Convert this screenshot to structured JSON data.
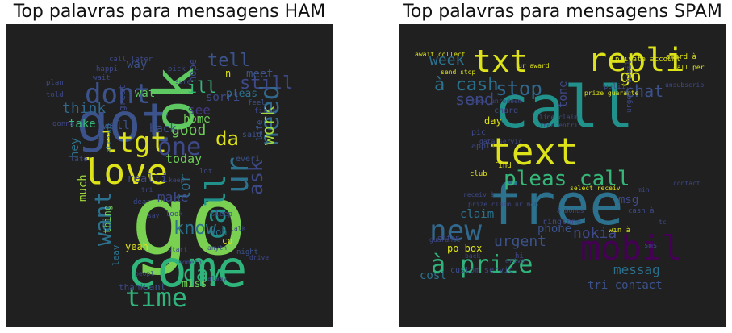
{
  "panels": [
    {
      "title": "Top palavras para mensagens HAM",
      "words": [
        {
          "text": "go",
          "color": "#7ad151"
        },
        {
          "text": "come",
          "color": "#2fb47c"
        },
        {
          "text": "got",
          "color": "#3b528b"
        },
        {
          "text": "love",
          "color": "#dde318"
        },
        {
          "text": "ok",
          "color": "#5ec962"
        },
        {
          "text": "ltgt",
          "color": "#dde318"
        },
        {
          "text": "time",
          "color": "#2fb47c"
        },
        {
          "text": "dont",
          "color": "#3b528b"
        },
        {
          "text": "call",
          "color": "#21918c"
        },
        {
          "text": "ur",
          "color": "#2c728e"
        },
        {
          "text": "one",
          "color": "#3e4989"
        },
        {
          "text": "know",
          "color": "#2c728e"
        },
        {
          "text": "day",
          "color": "#2fb47c"
        },
        {
          "text": "want",
          "color": "#2c728e"
        },
        {
          "text": "need",
          "color": "#31688e"
        },
        {
          "text": "ask",
          "color": "#3e4989"
        },
        {
          "text": "da",
          "color": "#dde318"
        },
        {
          "text": "good",
          "color": "#6ece58"
        },
        {
          "text": "still",
          "color": "#3e4989"
        },
        {
          "text": "tell",
          "color": "#3b528b"
        },
        {
          "text": "work",
          "color": "#a0da39"
        },
        {
          "text": "think",
          "color": "#31688e"
        },
        {
          "text": "see",
          "color": "#443983"
        },
        {
          "text": "ill",
          "color": "#35b779"
        },
        {
          "text": "home",
          "color": "#6ece58"
        },
        {
          "text": "lor",
          "color": "#2c728e"
        },
        {
          "text": "make",
          "color": "#3e4989"
        },
        {
          "text": "today",
          "color": "#6ece58"
        },
        {
          "text": "way",
          "color": "#3b528b"
        },
        {
          "text": "take",
          "color": "#35b779"
        },
        {
          "text": "back",
          "color": "#3b528b"
        },
        {
          "text": "realli",
          "color": "#3e4989"
        },
        {
          "text": "much",
          "color": "#a0da39"
        },
        {
          "text": "hey",
          "color": "#2c728e"
        },
        {
          "text": "well",
          "color": "#3b528b"
        },
        {
          "text": "sorri",
          "color": "#3e4989"
        },
        {
          "text": "meet",
          "color": "#3b528b"
        },
        {
          "text": "pleas",
          "color": "#2c728e"
        },
        {
          "text": "wat",
          "color": "#5ec962"
        },
        {
          "text": "yeah",
          "color": "#dde318"
        },
        {
          "text": "miss",
          "color": "#6ece58"
        },
        {
          "text": "cant",
          "color": "#3b528b"
        },
        {
          "text": "thank",
          "color": "#3e4989"
        },
        {
          "text": "thing",
          "color": "#6ece58"
        },
        {
          "text": "leav",
          "color": "#2c728e"
        },
        {
          "text": "oh",
          "color": "#2c728e"
        },
        {
          "text": "co",
          "color": "#dde318"
        },
        {
          "text": "n",
          "color": "#dde318"
        },
        {
          "text": "life",
          "color": "#3b528b"
        },
        {
          "text": "great",
          "color": "#3e4989"
        },
        {
          "text": "hope",
          "color": "#3e4989"
        },
        {
          "text": "said",
          "color": "#3b528b"
        },
        {
          "text": "everi",
          "color": "#3b528b"
        },
        {
          "text": "night",
          "color": "#3b528b"
        },
        {
          "text": "happi",
          "color": "#3e4989"
        },
        {
          "text": "wait",
          "color": "#3e4989"
        },
        {
          "text": "call later",
          "color": "#3e4989"
        },
        {
          "text": "pick",
          "color": "#3e4989"
        },
        {
          "text": "dear",
          "color": "#3e4989"
        },
        {
          "text": "later",
          "color": "#3e4989"
        },
        {
          "text": "feel",
          "color": "#3b528b"
        },
        {
          "text": "first",
          "color": "#3e4989"
        },
        {
          "text": "alreadi",
          "color": "#2c728e"
        },
        {
          "text": "plan",
          "color": "#3e4989"
        },
        {
          "text": "told",
          "color": "#3e4989"
        },
        {
          "text": "gonna",
          "color": "#3e4989"
        },
        {
          "text": "lot",
          "color": "#3e4989"
        },
        {
          "text": "look",
          "color": "#3e4989"
        },
        {
          "text": "sleep",
          "color": "#3e4989"
        },
        {
          "text": "talk",
          "color": "#3e4989"
        },
        {
          "text": "anyth",
          "color": "#3e4989"
        },
        {
          "text": "someth",
          "color": "#3e4989"
        },
        {
          "text": "alway",
          "color": "#3e4989"
        },
        {
          "text": "peopl",
          "color": "#3e4989"
        },
        {
          "text": "start",
          "color": "#3e4989"
        },
        {
          "text": "keep",
          "color": "#3e4989"
        },
        {
          "text": "tri",
          "color": "#3e4989"
        },
        {
          "text": "say",
          "color": "#3e4989"
        },
        {
          "text": "sure",
          "color": "#3e4989"
        },
        {
          "text": "drive",
          "color": "#3e4989"
        }
      ]
    },
    {
      "title": "Top palavras para mensagens SPAM",
      "words": [
        {
          "text": "call",
          "color": "#21918c"
        },
        {
          "text": "free",
          "color": "#2c728e"
        },
        {
          "text": "text",
          "color": "#dde318"
        },
        {
          "text": "txt",
          "color": "#dde318"
        },
        {
          "text": "repli",
          "color": "#dde318"
        },
        {
          "text": "mobil",
          "color": "#440154"
        },
        {
          "text": "new",
          "color": "#31688e"
        },
        {
          "text": "à prize",
          "color": "#2fb47c"
        },
        {
          "text": "pleas call",
          "color": "#35b779"
        },
        {
          "text": "stop",
          "color": "#31688e"
        },
        {
          "text": "à cash",
          "color": "#2c728e"
        },
        {
          "text": "send",
          "color": "#3e4989"
        },
        {
          "text": "week",
          "color": "#2c728e"
        },
        {
          "text": "nokia",
          "color": "#3e4989"
        },
        {
          "text": "messag",
          "color": "#2c728e"
        },
        {
          "text": "urgent",
          "color": "#3b528b"
        },
        {
          "text": "chat",
          "color": "#3b528b"
        },
        {
          "text": "go",
          "color": "#dde318"
        },
        {
          "text": "tone",
          "color": "#3e4989"
        },
        {
          "text": "phone",
          "color": "#3b528b"
        },
        {
          "text": "cost",
          "color": "#2c728e"
        },
        {
          "text": "tri contact",
          "color": "#3b528b"
        },
        {
          "text": "custom servic",
          "color": "#3e4989"
        },
        {
          "text": "po box",
          "color": "#dde318"
        },
        {
          "text": "claim",
          "color": "#2c728e"
        },
        {
          "text": "day",
          "color": "#dde318"
        },
        {
          "text": "msg",
          "color": "#3e4989"
        },
        {
          "text": "appli",
          "color": "#3e4989"
        },
        {
          "text": "club",
          "color": "#dde318"
        },
        {
          "text": "find",
          "color": "#dde318"
        },
        {
          "text": "select receiv",
          "color": "#dde318"
        },
        {
          "text": "await collect",
          "color": "#dde318"
        },
        {
          "text": "send stop",
          "color": "#dde318"
        },
        {
          "text": "charg",
          "color": "#3e4989"
        },
        {
          "text": "pic",
          "color": "#3e4989"
        },
        {
          "text": "ur award",
          "color": "#dde318"
        },
        {
          "text": "prize guarante",
          "color": "#dde318"
        },
        {
          "text": "private account",
          "color": "#dde318"
        },
        {
          "text": "award à",
          "color": "#dde318"
        },
        {
          "text": "call per",
          "color": "#dde318"
        },
        {
          "text": "unsubscrib",
          "color": "#3e4989"
        },
        {
          "text": "urgent mobil",
          "color": "#3e4989"
        },
        {
          "text": "polii",
          "color": "#3e4989"
        },
        {
          "text": "show unredeem",
          "color": "#3e4989"
        },
        {
          "text": "line claim",
          "color": "#3e4989"
        },
        {
          "text": "free entri",
          "color": "#3e4989"
        },
        {
          "text": "data servic",
          "color": "#3e4989"
        },
        {
          "text": "receiv à",
          "color": "#3e4989"
        },
        {
          "text": "prize claim",
          "color": "#3e4989"
        },
        {
          "text": "ur mob",
          "color": "#3e4989"
        },
        {
          "text": "ringtone",
          "color": "#3e4989"
        },
        {
          "text": "win à",
          "color": "#dde318"
        },
        {
          "text": "cash à",
          "color": "#3e4989"
        },
        {
          "text": "sms",
          "color": "#3e4989"
        },
        {
          "text": "offer",
          "color": "#3e4989"
        },
        {
          "text": "guarante",
          "color": "#3e4989"
        },
        {
          "text": "back",
          "color": "#3e4989"
        },
        {
          "text": "hi",
          "color": "#3e4989"
        },
        {
          "text": "drive",
          "color": "#3e4989"
        },
        {
          "text": "à bonus",
          "color": "#3e4989"
        },
        {
          "text": "tc",
          "color": "#3e4989"
        },
        {
          "text": "min",
          "color": "#3e4989"
        },
        {
          "text": "contact",
          "color": "#3e4989"
        }
      ]
    }
  ]
}
